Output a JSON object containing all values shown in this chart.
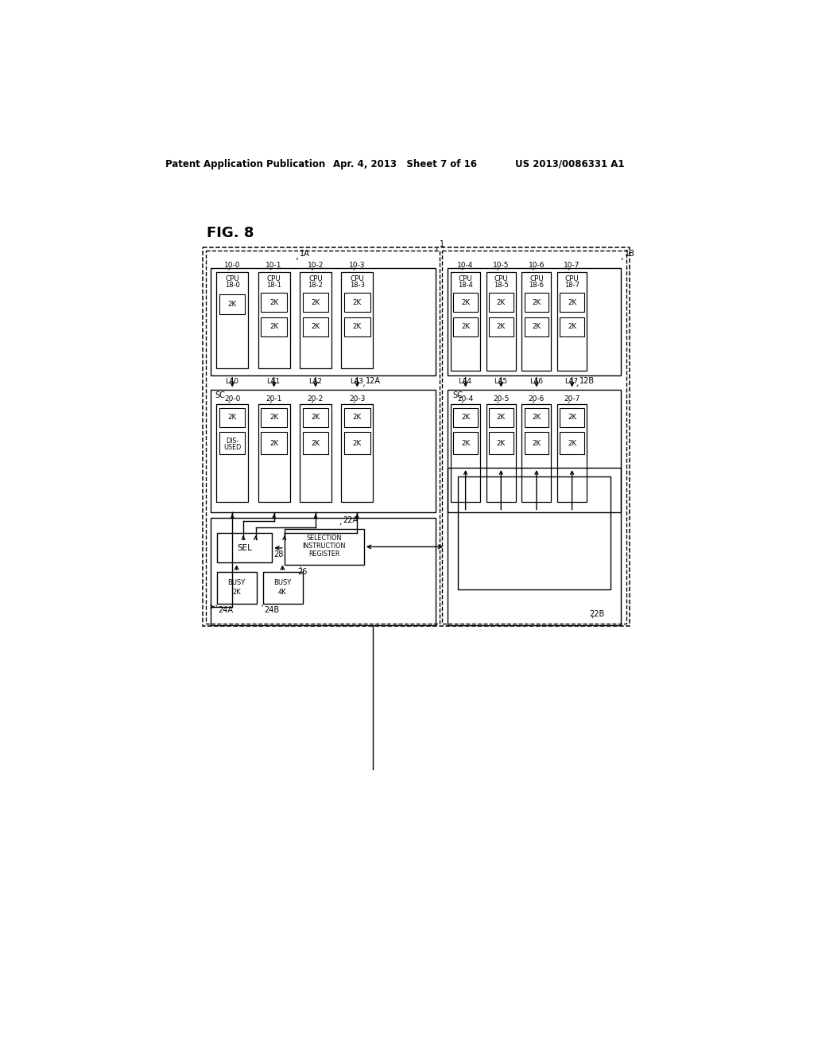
{
  "header_left": "Patent Application Publication",
  "header_mid": "Apr. 4, 2013   Sheet 7 of 16",
  "header_right": "US 2013/0086331 A1",
  "fig_label": "FIG. 8",
  "bg_color": "#ffffff"
}
